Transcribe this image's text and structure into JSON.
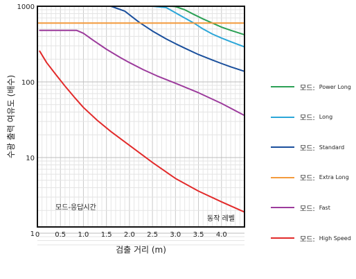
{
  "chart_data": {
    "type": "line",
    "ylabel": "수광 출력 여유도 (배수)",
    "xlabel": "검출 거리 (m)",
    "yscale": "log",
    "xlim": [
      0,
      4.5
    ],
    "ylim": [
      0.7,
      1000
    ],
    "x_ticks": [
      "0",
      "0.5",
      "1.0",
      "1.5",
      "2.0",
      "2.5",
      "3.0",
      "3.5",
      "4.0"
    ],
    "y_ticks": [
      "1000",
      "100",
      "10",
      "1"
    ],
    "grid": true,
    "annotations": {
      "inner_label": "모드-응답시간",
      "corner_label": "동작 레벨"
    },
    "legend_position": "right",
    "series": [
      {
        "name": "Power Long",
        "color": "#2ca055",
        "x": [
          2.9,
          3.0,
          3.2,
          3.4,
          3.6,
          3.8,
          4.0,
          4.2,
          4.5
        ],
        "y": [
          1000,
          990,
          900,
          780,
          680,
          600,
          530,
          480,
          420
        ]
      },
      {
        "name": "Long",
        "color": "#2ba6d8",
        "x": [
          2.35,
          2.5,
          2.8,
          3.0,
          3.2,
          3.4,
          3.6,
          3.8,
          4.0,
          4.2,
          4.5
        ],
        "y": [
          1000,
          1000,
          960,
          820,
          700,
          600,
          500,
          430,
          380,
          340,
          290
        ]
      },
      {
        "name": "Standard",
        "color": "#1a4f9c",
        "x": [
          1.3,
          1.6,
          1.9,
          2.2,
          2.5,
          2.8,
          3.0,
          3.2,
          3.5,
          3.8,
          4.0,
          4.2,
          4.5
        ],
        "y": [
          1000,
          1000,
          860,
          620,
          470,
          370,
          320,
          280,
          230,
          195,
          175,
          158,
          138
        ]
      },
      {
        "name": "Extra Long",
        "color": "#f39a3c",
        "x": [
          0,
          0.5,
          1.0,
          1.5,
          2.0,
          2.5,
          3.0,
          3.5,
          4.0,
          4.5
        ],
        "y": [
          600,
          600,
          600,
          600,
          600,
          600,
          600,
          600,
          600,
          600
        ]
      },
      {
        "name": "Fast",
        "color": "#9c3b9c",
        "x": [
          0.05,
          0.3,
          0.6,
          0.85,
          1.0,
          1.2,
          1.5,
          1.8,
          2.0,
          2.3,
          2.6,
          3.0,
          3.5,
          4.0,
          4.5
        ],
        "y": [
          480,
          480,
          480,
          480,
          440,
          360,
          270,
          210,
          180,
          145,
          120,
          96,
          72,
          52,
          36
        ]
      },
      {
        "name": "High Speed",
        "color": "#e22a2a",
        "x": [
          0.05,
          0.2,
          0.4,
          0.6,
          0.8,
          1.0,
          1.3,
          1.6,
          2.0,
          2.5,
          3.0,
          3.5,
          4.0,
          4.5
        ],
        "y": [
          255,
          180,
          125,
          88,
          63,
          46,
          31,
          22,
          14.5,
          8.6,
          5.3,
          3.6,
          2.6,
          1.9
        ]
      }
    ]
  },
  "legend": {
    "mode_label": "모드:"
  }
}
